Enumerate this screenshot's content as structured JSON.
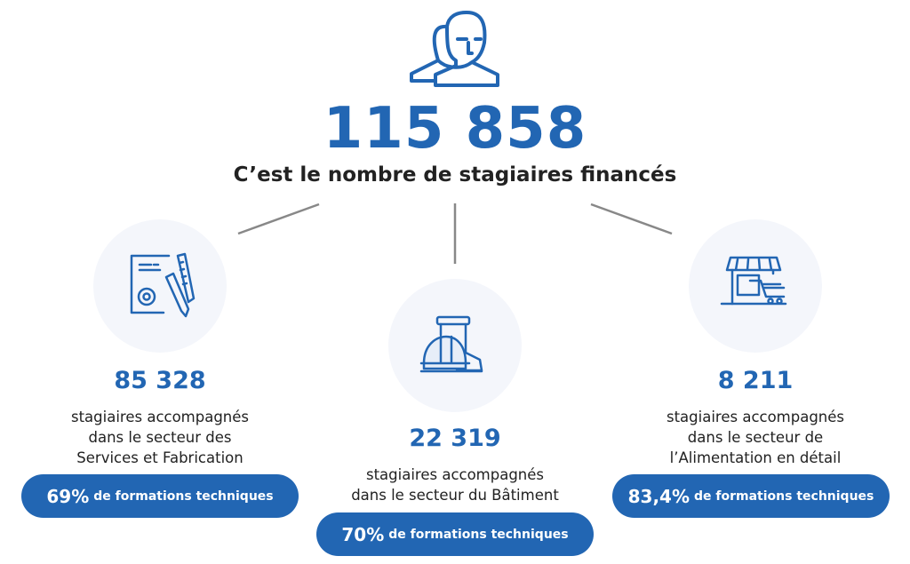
{
  "header": {
    "icon": "users-icon",
    "total": "115 858",
    "subtitle": "C’est le nombre de stagiaires financés"
  },
  "colors": {
    "accent": "#2266b3",
    "circle": "#f4f6fb",
    "connector": "#888888"
  },
  "sectors": [
    {
      "icon": "document-gear-pencil-icon",
      "count": "85 328",
      "lines": [
        "stagiaires accompagnés",
        "dans le secteur des",
        "Services et Fabrication"
      ],
      "pct": "69%",
      "pill_text": "de formations techniques"
    },
    {
      "icon": "boot-helmet-icon",
      "count": "22 319",
      "lines": [
        "stagiaires accompagnés",
        "dans le secteur du Bâtiment"
      ],
      "pct": "70%",
      "pill_text": "de formations techniques"
    },
    {
      "icon": "shop-cart-icon",
      "count": "8 211",
      "lines": [
        "stagiaires accompagnés",
        "dans le secteur de",
        "l’Alimentation en détail"
      ],
      "pct": "83,4%",
      "pill_text": "de formations techniques"
    }
  ]
}
